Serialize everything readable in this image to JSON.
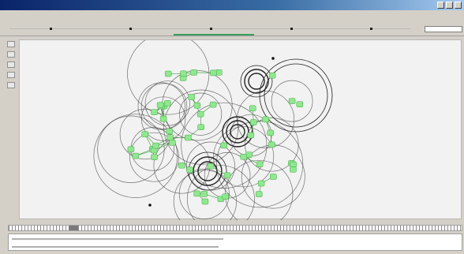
{
  "window": {
    "title": ""
  },
  "menu": {
    "items": [
      {
        "label": ""
      },
      {
        "label": ""
      },
      {
        "label": ""
      }
    ],
    "center_label": ""
  },
  "timeline": {
    "progress_fraction": 0.2,
    "markers": [
      0.1,
      0.3,
      0.5,
      0.7,
      0.9
    ]
  },
  "view_tabs": [
    {
      "label": ""
    },
    {
      "label": ""
    }
  ],
  "tools": [
    {
      "icon": "select-icon"
    },
    {
      "icon": "move-icon"
    },
    {
      "icon": "zoom-icon"
    },
    {
      "icon": "node-icon"
    },
    {
      "icon": "link-icon"
    }
  ],
  "network": {
    "node_color": "#8fe88f",
    "node_border": "#3aa83a",
    "range_color": "#444444",
    "link_color": "#3b8f3b",
    "node_count": 56
  },
  "ruler": {
    "cursor_label": ""
  },
  "log": {
    "lines": [
      "",
      ""
    ]
  }
}
